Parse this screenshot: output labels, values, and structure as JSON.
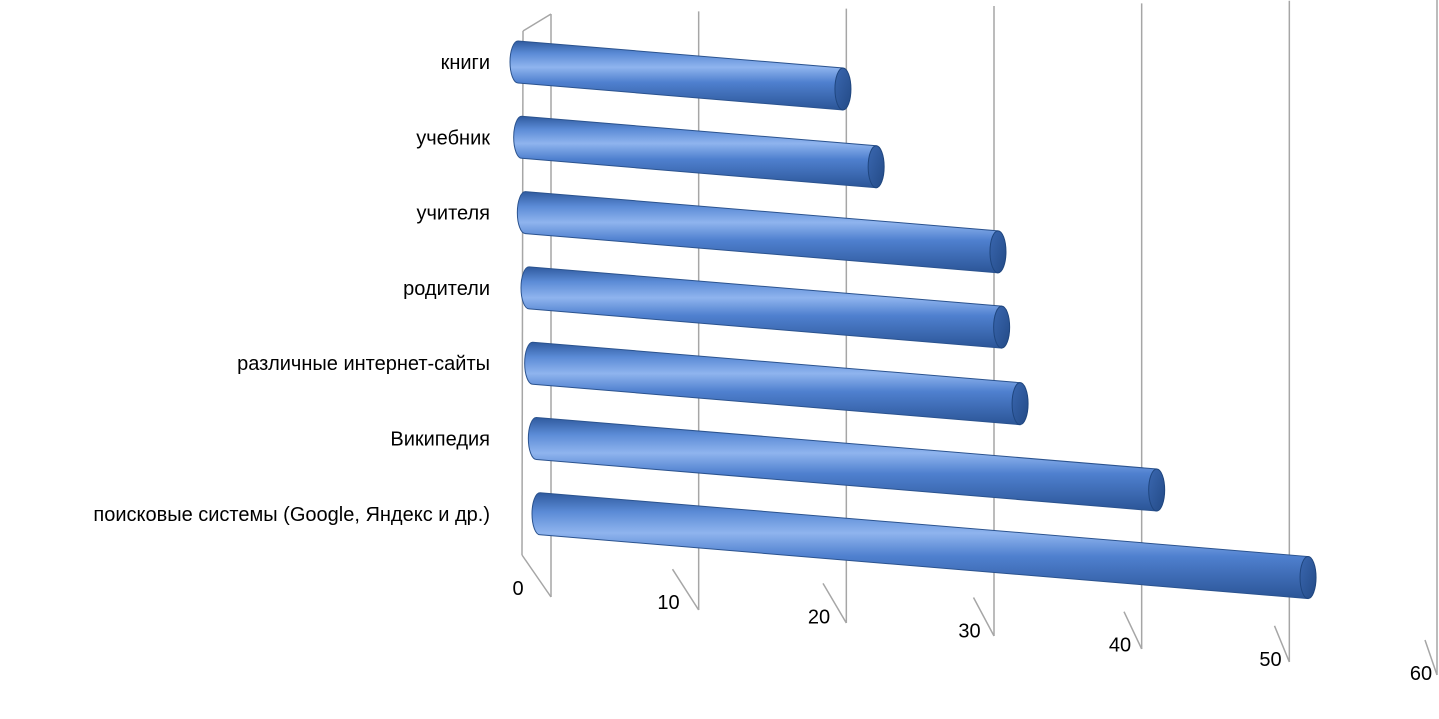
{
  "chart_data": {
    "type": "bar",
    "orientation": "horizontal",
    "style": "3d-cylinder",
    "categories": [
      "книги",
      "учебник",
      "учителя",
      "родители",
      "различные интернет-сайты",
      "Википедия",
      "поисковые системы (Google, Яндекс и др.)"
    ],
    "values": [
      22,
      24,
      32,
      32,
      33,
      42,
      52
    ],
    "x_ticks": [
      "0",
      "10",
      "20",
      "30",
      "40",
      "50",
      "60"
    ],
    "xlim": [
      0,
      60
    ],
    "grid": true,
    "legend": "none",
    "bar_color": "#4a7cc9",
    "gridline_color": "#a6a6a6"
  }
}
